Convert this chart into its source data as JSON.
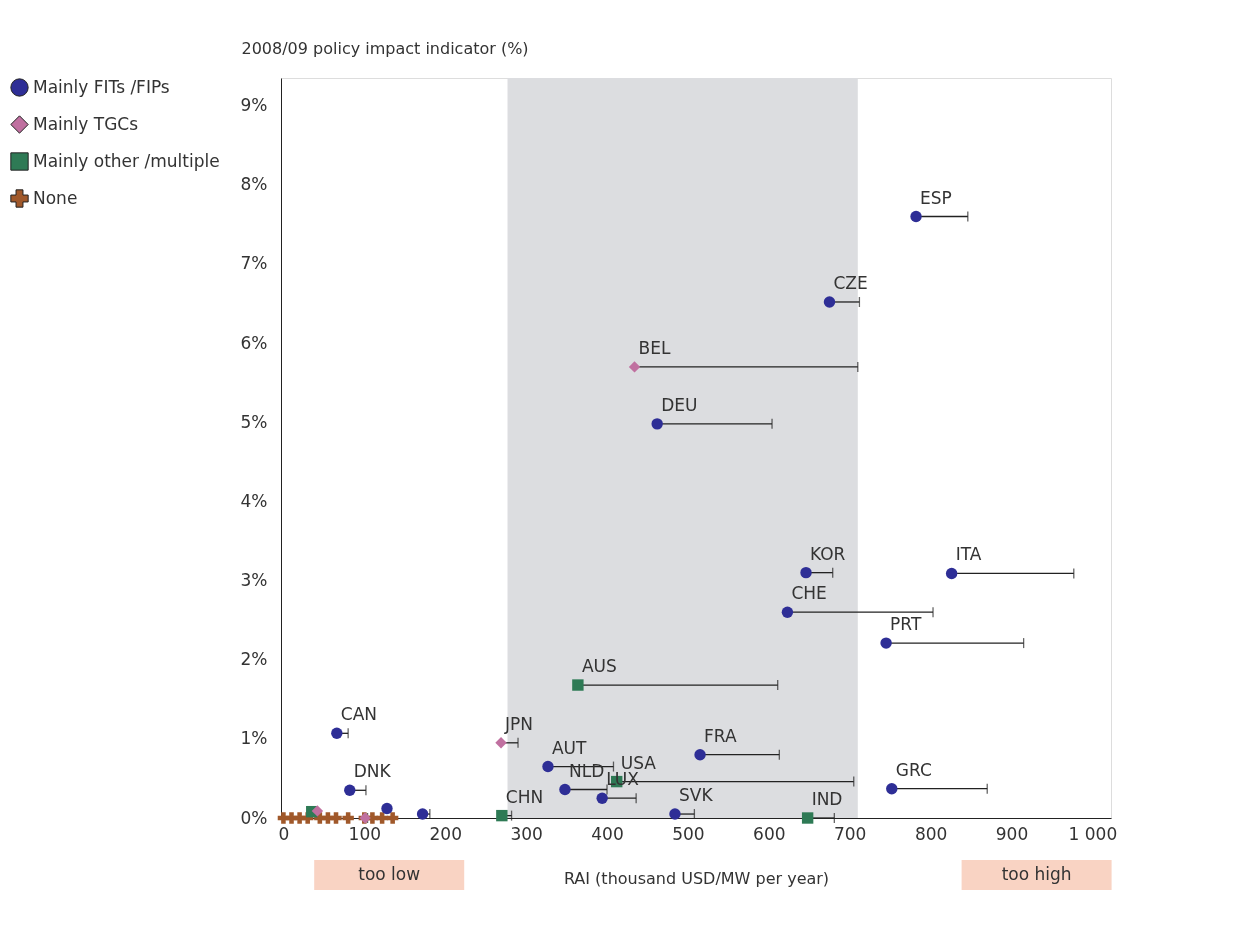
{
  "chart_data": {
    "type": "scatter",
    "ylabel": "2008/09 policy impact indicator (%)",
    "xlabel": "RAI (thousand USD/MW per year)",
    "xlim": [
      -3,
      1023
    ],
    "ylim": [
      0,
      9.35
    ],
    "xticks": [
      0,
      100,
      200,
      300,
      400,
      500,
      600,
      700,
      800,
      900,
      {
        "value": 1000,
        "label": "1 000"
      }
    ],
    "yticks": [
      {
        "value": 0,
        "label": "0%"
      },
      {
        "value": 1,
        "label": "1%"
      },
      {
        "value": 2,
        "label": "2%"
      },
      {
        "value": 3,
        "label": "3%"
      },
      {
        "value": 4,
        "label": "4%"
      },
      {
        "value": 5,
        "label": "5%"
      },
      {
        "value": 6,
        "label": "6%"
      },
      {
        "value": 7,
        "label": "7%"
      },
      {
        "value": 8,
        "label": "8%"
      },
      {
        "value": 9,
        "label": "9%"
      }
    ],
    "grid": false,
    "legend": "top left",
    "bands": [
      {
        "axis": "x",
        "from": 277,
        "to": 710,
        "color": "#dcdde0"
      }
    ],
    "series": [
      {
        "name": "Mainly FITs /FIPs",
        "color": "#2e2e96",
        "marker": "circle",
        "x": [
          782,
          675,
          462,
          646,
          826,
          623,
          745,
          66,
          327,
          515,
          752,
          82,
          348,
          394,
          484,
          128,
          172
        ],
        "values": [
          7.6,
          6.52,
          4.98,
          3.1,
          3.09,
          2.6,
          2.21,
          1.07,
          0.65,
          0.8,
          0.37,
          0.35,
          0.36,
          0.25,
          0.05,
          0.12,
          0.05
        ],
        "xerrors": [
          [
            782,
            846
          ],
          [
            675,
            712
          ],
          [
            462,
            604
          ],
          [
            646,
            679
          ],
          [
            826,
            977
          ],
          [
            623,
            803
          ],
          [
            745,
            915
          ],
          [
            66,
            80
          ],
          [
            327,
            408
          ],
          [
            515,
            613
          ],
          [
            752,
            870
          ],
          [
            82,
            102
          ],
          [
            348,
            400
          ],
          [
            394,
            436
          ],
          [
            484,
            508
          ],
          null,
          [
            172,
            181
          ]
        ]
      },
      {
        "name": "Mainly TGCs",
        "color": "#c070a0",
        "marker": "diamond",
        "x": [
          434,
          269,
          101,
          42
        ],
        "values": [
          5.7,
          0.95,
          0.0,
          0.09
        ],
        "xerrors": [
          [
            434,
            710
          ],
          [
            269,
            290
          ],
          [
            101,
            104
          ],
          null
        ]
      },
      {
        "name": "Mainly other /multiple",
        "color": "#2e7a55",
        "marker": "square",
        "x": [
          364,
          412,
          648,
          270,
          35
        ],
        "values": [
          1.68,
          0.46,
          0.0,
          0.03,
          0.08
        ],
        "xerrors": [
          [
            364,
            611
          ],
          [
            412,
            705
          ],
          [
            648,
            681
          ],
          [
            270,
            282
          ],
          null
        ]
      },
      {
        "name": "None",
        "color": "#a0582a",
        "marker": "cross",
        "x": [
          0,
          10,
          20,
          30,
          45,
          55,
          65,
          80,
          100,
          110,
          122,
          135
        ],
        "values": [
          0,
          0,
          0,
          0,
          0,
          0,
          0,
          0,
          0,
          0,
          0,
          0
        ]
      }
    ],
    "annotations": [
      {
        "text": "ESP",
        "x": 782,
        "y": 7.6
      },
      {
        "text": "CZE",
        "x": 675,
        "y": 6.52
      },
      {
        "text": "BEL",
        "x": 434,
        "y": 5.7
      },
      {
        "text": "DEU",
        "x": 462,
        "y": 4.98
      },
      {
        "text": "KOR",
        "x": 646,
        "y": 3.1
      },
      {
        "text": "ITA",
        "x": 826,
        "y": 3.09
      },
      {
        "text": "CHE",
        "x": 623,
        "y": 2.6
      },
      {
        "text": "PRT",
        "x": 745,
        "y": 2.21
      },
      {
        "text": "AUS",
        "x": 364,
        "y": 1.68
      },
      {
        "text": "CAN",
        "x": 66,
        "y": 1.07
      },
      {
        "text": "JPN",
        "x": 269,
        "y": 0.95
      },
      {
        "text": "AUT",
        "x": 327,
        "y": 0.65
      },
      {
        "text": "FRA",
        "x": 515,
        "y": 0.8
      },
      {
        "text": "USA",
        "x": 412,
        "y": 0.46
      },
      {
        "text": "GRC",
        "x": 752,
        "y": 0.37
      },
      {
        "text": "DNK",
        "x": 82,
        "y": 0.35
      },
      {
        "text": "NLD",
        "x": 348,
        "y": 0.36
      },
      {
        "text": "LUX",
        "x": 394,
        "y": 0.25
      },
      {
        "text": "SVK",
        "x": 484,
        "y": 0.05
      },
      {
        "text": "IND",
        "x": 648,
        "y": 0.0
      },
      {
        "text": "CHN",
        "x": 270,
        "y": 0.03
      },
      "too low",
      "too high"
    ]
  }
}
